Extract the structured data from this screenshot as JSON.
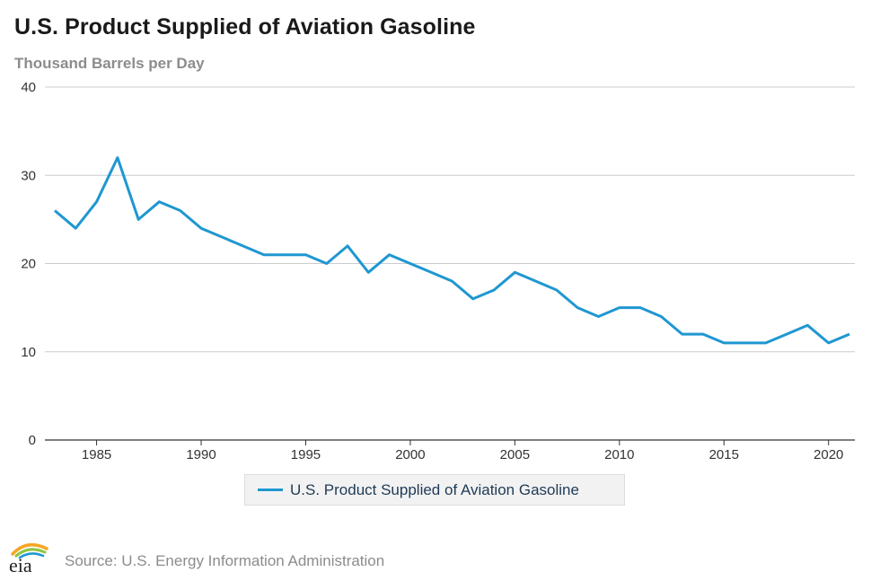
{
  "header": {
    "title": "U.S. Product Supplied of Aviation Gasoline",
    "subtitle": "Thousand Barrels per Day"
  },
  "footer": {
    "logo_text": "eia",
    "source": "Source: U.S. Energy Information Administration"
  },
  "colors": {
    "series": "#1f97d1",
    "grid": "#cccccc",
    "axis": "#333333"
  },
  "chart_data": {
    "type": "line",
    "title": "U.S. Product Supplied of Aviation Gasoline",
    "ylabel": "Thousand Barrels per Day",
    "xlabel": "",
    "ylim": [
      0,
      40
    ],
    "yticks": [
      0,
      10,
      20,
      30,
      40
    ],
    "xlim": [
      1983,
      2021
    ],
    "xticks": [
      1985,
      1990,
      1995,
      2000,
      2005,
      2010,
      2015,
      2020
    ],
    "grid": true,
    "legend_position": "bottom",
    "series": [
      {
        "name": "U.S. Product Supplied of Aviation Gasoline",
        "x": [
          1983,
          1984,
          1985,
          1986,
          1987,
          1988,
          1989,
          1990,
          1991,
          1992,
          1993,
          1994,
          1995,
          1996,
          1997,
          1998,
          1999,
          2000,
          2001,
          2002,
          2003,
          2004,
          2005,
          2006,
          2007,
          2008,
          2009,
          2010,
          2011,
          2012,
          2013,
          2014,
          2015,
          2016,
          2017,
          2018,
          2019,
          2020,
          2021
        ],
        "values": [
          26,
          24,
          27,
          32,
          25,
          27,
          26,
          24,
          23,
          22,
          21,
          21,
          21,
          20,
          22,
          19,
          21,
          20,
          19,
          18,
          16,
          17,
          19,
          18,
          17,
          15,
          14,
          15,
          15,
          14,
          12,
          12,
          11,
          11,
          11,
          12,
          13,
          11,
          12
        ]
      }
    ]
  }
}
